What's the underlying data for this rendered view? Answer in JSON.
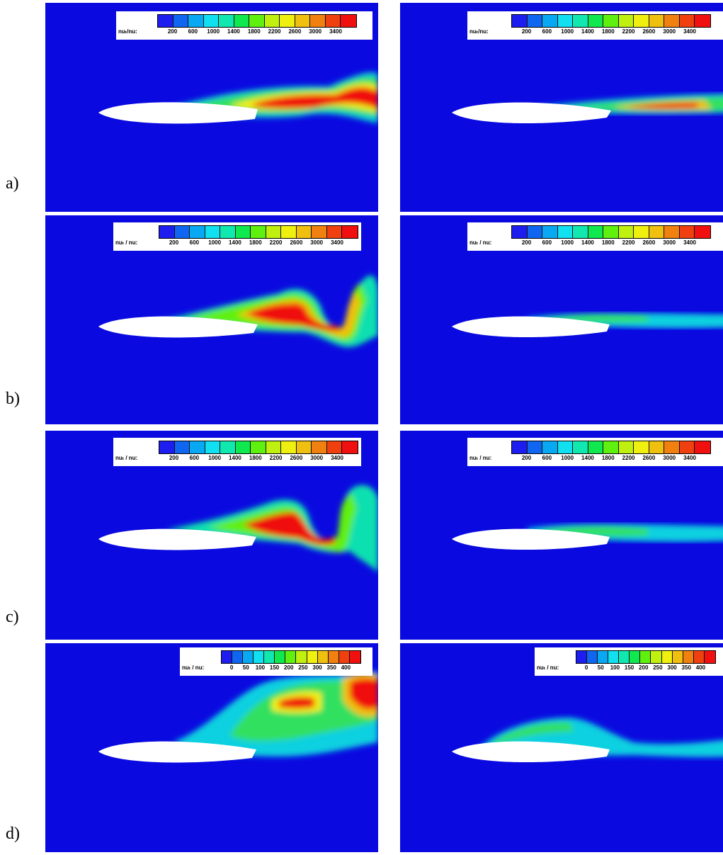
{
  "rows": [
    {
      "label": "a)",
      "left": {
        "legend_label": "nuₜ/nu:",
        "ticks": [
          "200",
          "600",
          "1000",
          "1400",
          "1800",
          "2200",
          "2600",
          "3000",
          "3400"
        ]
      },
      "right": {
        "legend_label": "nuₜ/nu:",
        "ticks": [
          "200",
          "600",
          "1000",
          "1400",
          "1800",
          "2200",
          "2600",
          "3000",
          "3400"
        ]
      }
    },
    {
      "label": "b)",
      "left": {
        "legend_label": "nuₜ / nu:",
        "ticks": [
          "200",
          "600",
          "1000",
          "1400",
          "1800",
          "2200",
          "2600",
          "3000",
          "3400"
        ]
      },
      "right": {
        "legend_label": "nuₜ / nu:",
        "ticks": [
          "200",
          "600",
          "1000",
          "1400",
          "1800",
          "2200",
          "2600",
          "3000",
          "3400"
        ]
      }
    },
    {
      "label": "c)",
      "left": {
        "legend_label": "nuₜ / nu:",
        "ticks": [
          "200",
          "600",
          "1000",
          "1400",
          "1800",
          "2200",
          "2600",
          "3000",
          "3400"
        ]
      },
      "right": {
        "legend_label": "nuₜ / nu:",
        "ticks": [
          "200",
          "600",
          "1000",
          "1400",
          "1800",
          "2200",
          "2600",
          "3000",
          "3400"
        ]
      }
    },
    {
      "label": "d)",
      "left": {
        "legend_label": "nuₜ / nu:",
        "ticks": [
          "0",
          "50",
          "100",
          "150",
          "200",
          "250",
          "300",
          "350",
          "400"
        ]
      },
      "right": {
        "legend_label": "nuₜ / nu:",
        "ticks": [
          "0",
          "50",
          "100",
          "150",
          "200",
          "250",
          "300",
          "350",
          "400"
        ]
      }
    }
  ],
  "colormap": [
    "#1d1df0",
    "#1066f0",
    "#09a8f2",
    "#10e0f0",
    "#10e8b0",
    "#10e850",
    "#60f010",
    "#c0f010",
    "#f0f010",
    "#f0c010",
    "#f08010",
    "#f04010",
    "#f01010"
  ]
}
